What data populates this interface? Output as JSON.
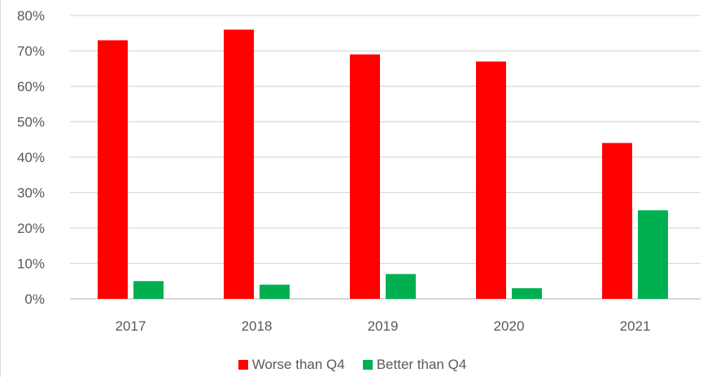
{
  "chart_data": {
    "type": "bar",
    "categories": [
      "2017",
      "2018",
      "2019",
      "2020",
      "2021"
    ],
    "series": [
      {
        "name": "Worse than Q4",
        "color": "#ff0000",
        "values": [
          73,
          76,
          69,
          67,
          44
        ]
      },
      {
        "name": "Better than Q4",
        "color": "#00b050",
        "values": [
          5,
          4,
          7,
          3,
          25
        ]
      }
    ],
    "ylim": [
      0,
      80
    ],
    "yticks": [
      "0%",
      "10%",
      "20%",
      "30%",
      "40%",
      "50%",
      "60%",
      "70%",
      "80%"
    ],
    "ytick_values": [
      0,
      10,
      20,
      30,
      40,
      50,
      60,
      70,
      80
    ],
    "grid": true,
    "legend_position": "bottom"
  }
}
